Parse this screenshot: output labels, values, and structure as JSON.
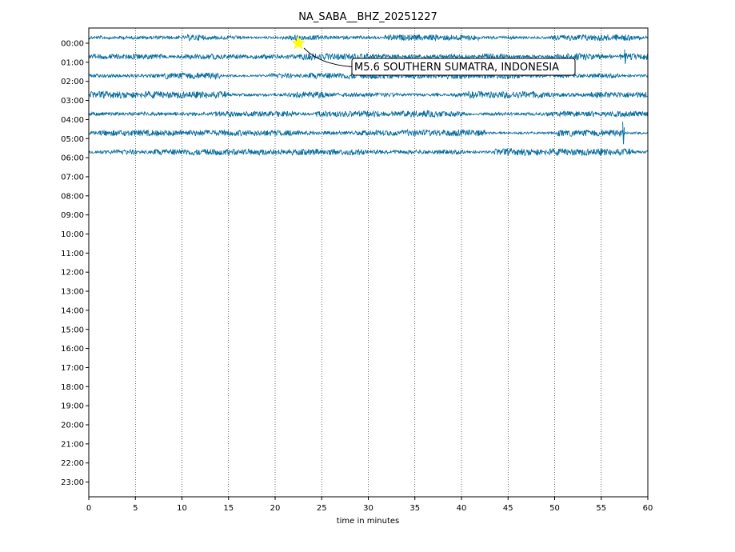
{
  "chart_data": {
    "type": "line",
    "title": "NA_SABA__BHZ_20251227",
    "xlabel": "time in minutes",
    "ylabel": "",
    "xlim": [
      0,
      60
    ],
    "x_ticks": [
      "0",
      "5",
      "10",
      "15",
      "20",
      "25",
      "30",
      "35",
      "40",
      "45",
      "50",
      "55",
      "60"
    ],
    "y_ticks": [
      "00:00",
      "01:00",
      "02:00",
      "03:00",
      "04:00",
      "05:00",
      "06:00",
      "07:00",
      "08:00",
      "09:00",
      "10:00",
      "11:00",
      "12:00",
      "13:00",
      "14:00",
      "15:00",
      "16:00",
      "17:00",
      "18:00",
      "19:00",
      "20:00",
      "21:00",
      "22:00",
      "23:00"
    ],
    "grid": "vertical dotted lines at x ticks",
    "trace_color": "#0a6e9e",
    "traces_present_hours": 7,
    "events": [
      {
        "label": "M5.6 SOUTHERN SUMATRA, INDONESIA",
        "hour": "00:00",
        "minute": 22.5,
        "marker_color": "#ffff00"
      }
    ]
  }
}
